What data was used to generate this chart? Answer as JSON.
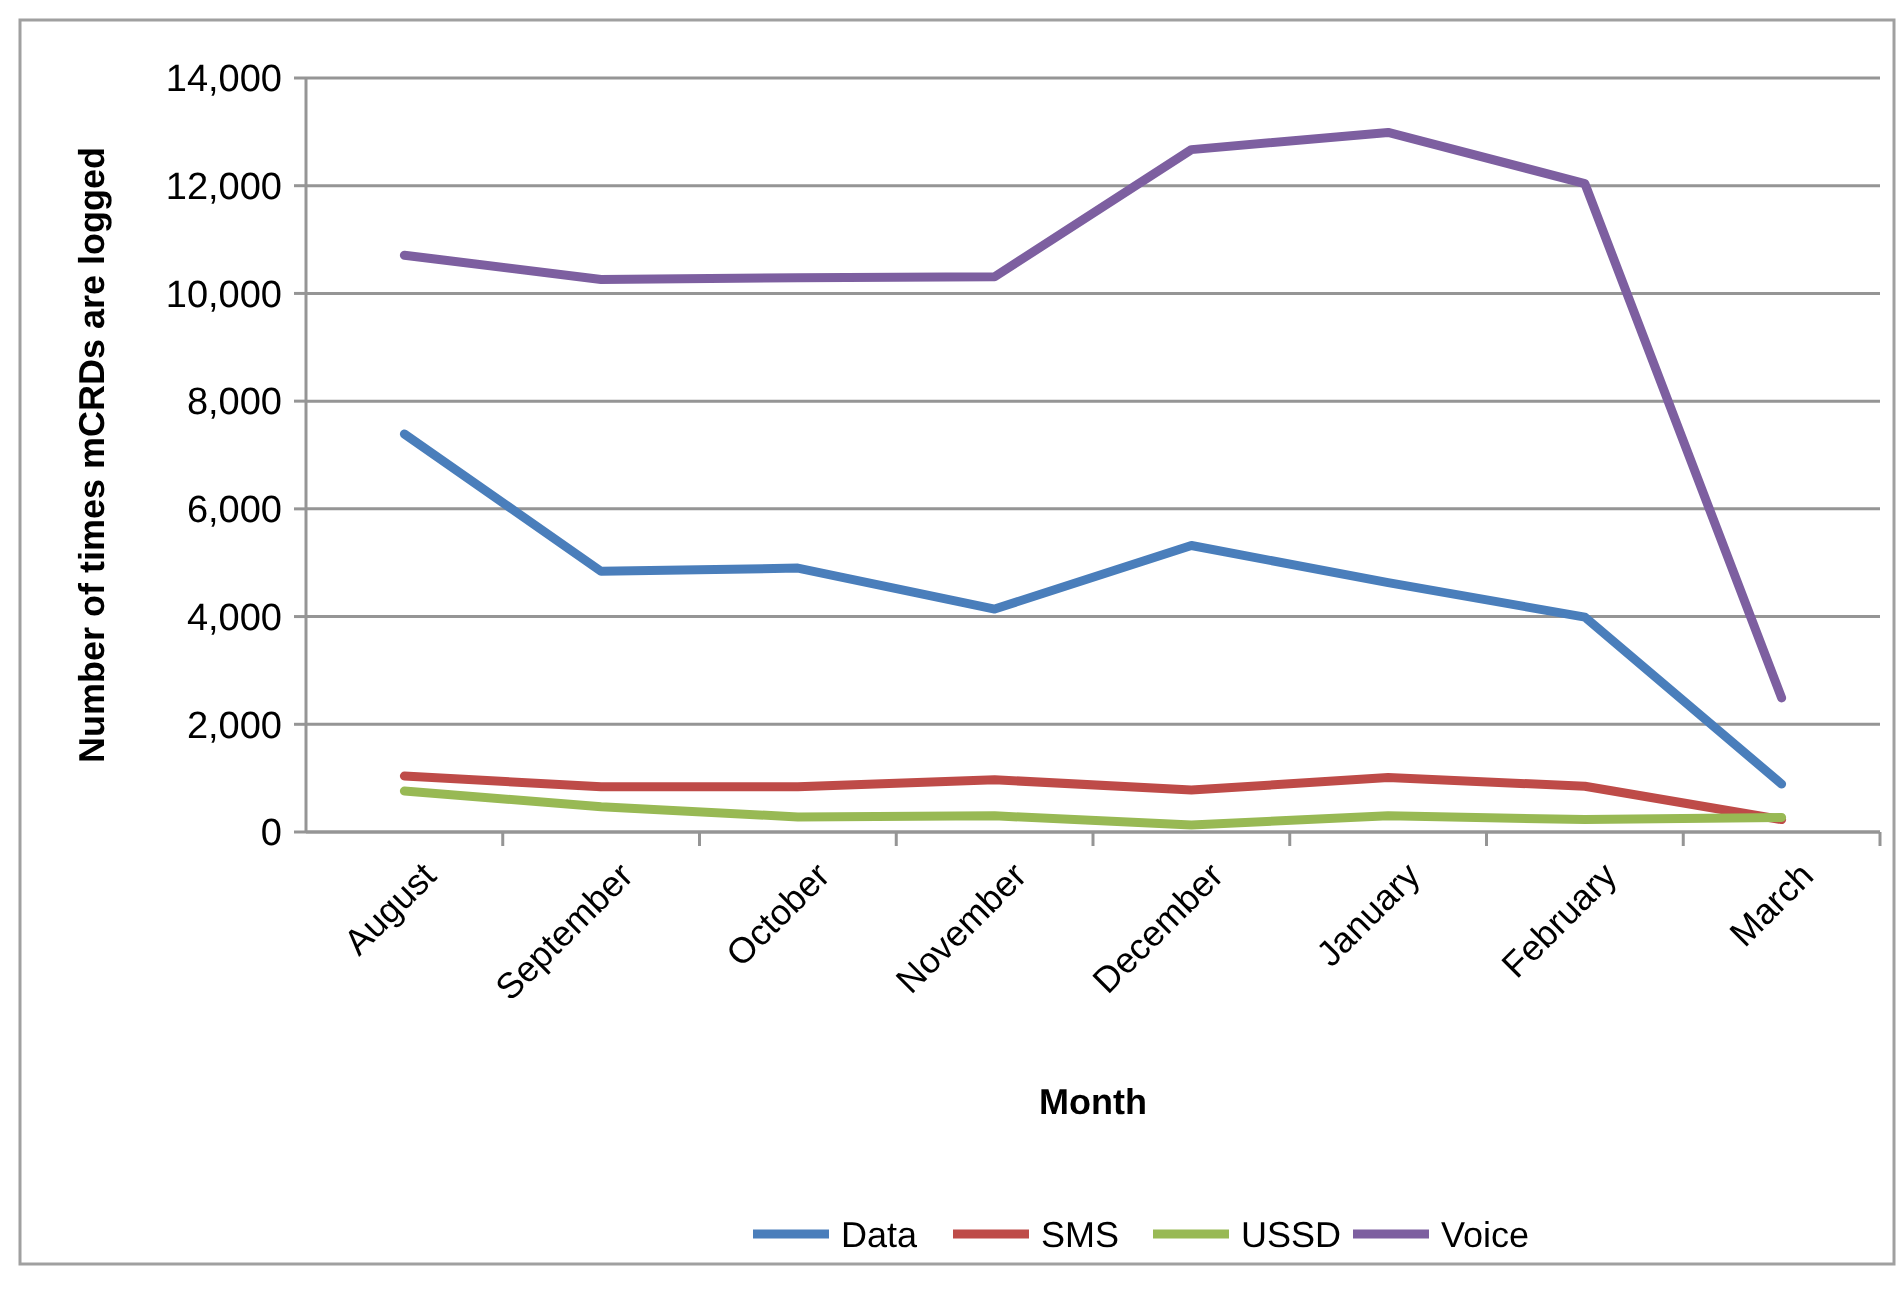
{
  "chart_data": {
    "type": "line",
    "xlabel": "Month",
    "ylabel": "Number of times mCRDs are logged",
    "categories": [
      "August",
      "September",
      "October",
      "November",
      "December",
      "January",
      "February",
      "March"
    ],
    "series": [
      {
        "name": "Data",
        "color": "#4a7ebb",
        "values": [
          7390,
          4840,
          4900,
          4140,
          5320,
          4630,
          3990,
          890
        ]
      },
      {
        "name": "SMS",
        "color": "#be4b48",
        "values": [
          1040,
          840,
          840,
          970,
          780,
          1010,
          850,
          230
        ]
      },
      {
        "name": "USSD",
        "color": "#98b954",
        "values": [
          760,
          470,
          280,
          300,
          130,
          300,
          230,
          270
        ]
      },
      {
        "name": "Voice",
        "color": "#7d5fa0",
        "values": [
          10710,
          10260,
          10290,
          10310,
          12670,
          12990,
          12040,
          2490
        ]
      }
    ],
    "ylim": [
      0,
      14000
    ],
    "yticks": [
      {
        "value": 0,
        "label": "0"
      },
      {
        "value": 2000,
        "label": "2,000"
      },
      {
        "value": 4000,
        "label": "4,000"
      },
      {
        "value": 6000,
        "label": "6,000"
      },
      {
        "value": 8000,
        "label": "8,000"
      },
      {
        "value": 10000,
        "label": "10,000"
      },
      {
        "value": 12000,
        "label": "12,000"
      },
      {
        "value": 14000,
        "label": "14,000"
      }
    ],
    "grid": "y",
    "legend": "bottom",
    "marker": "none",
    "line_style": "solid"
  }
}
